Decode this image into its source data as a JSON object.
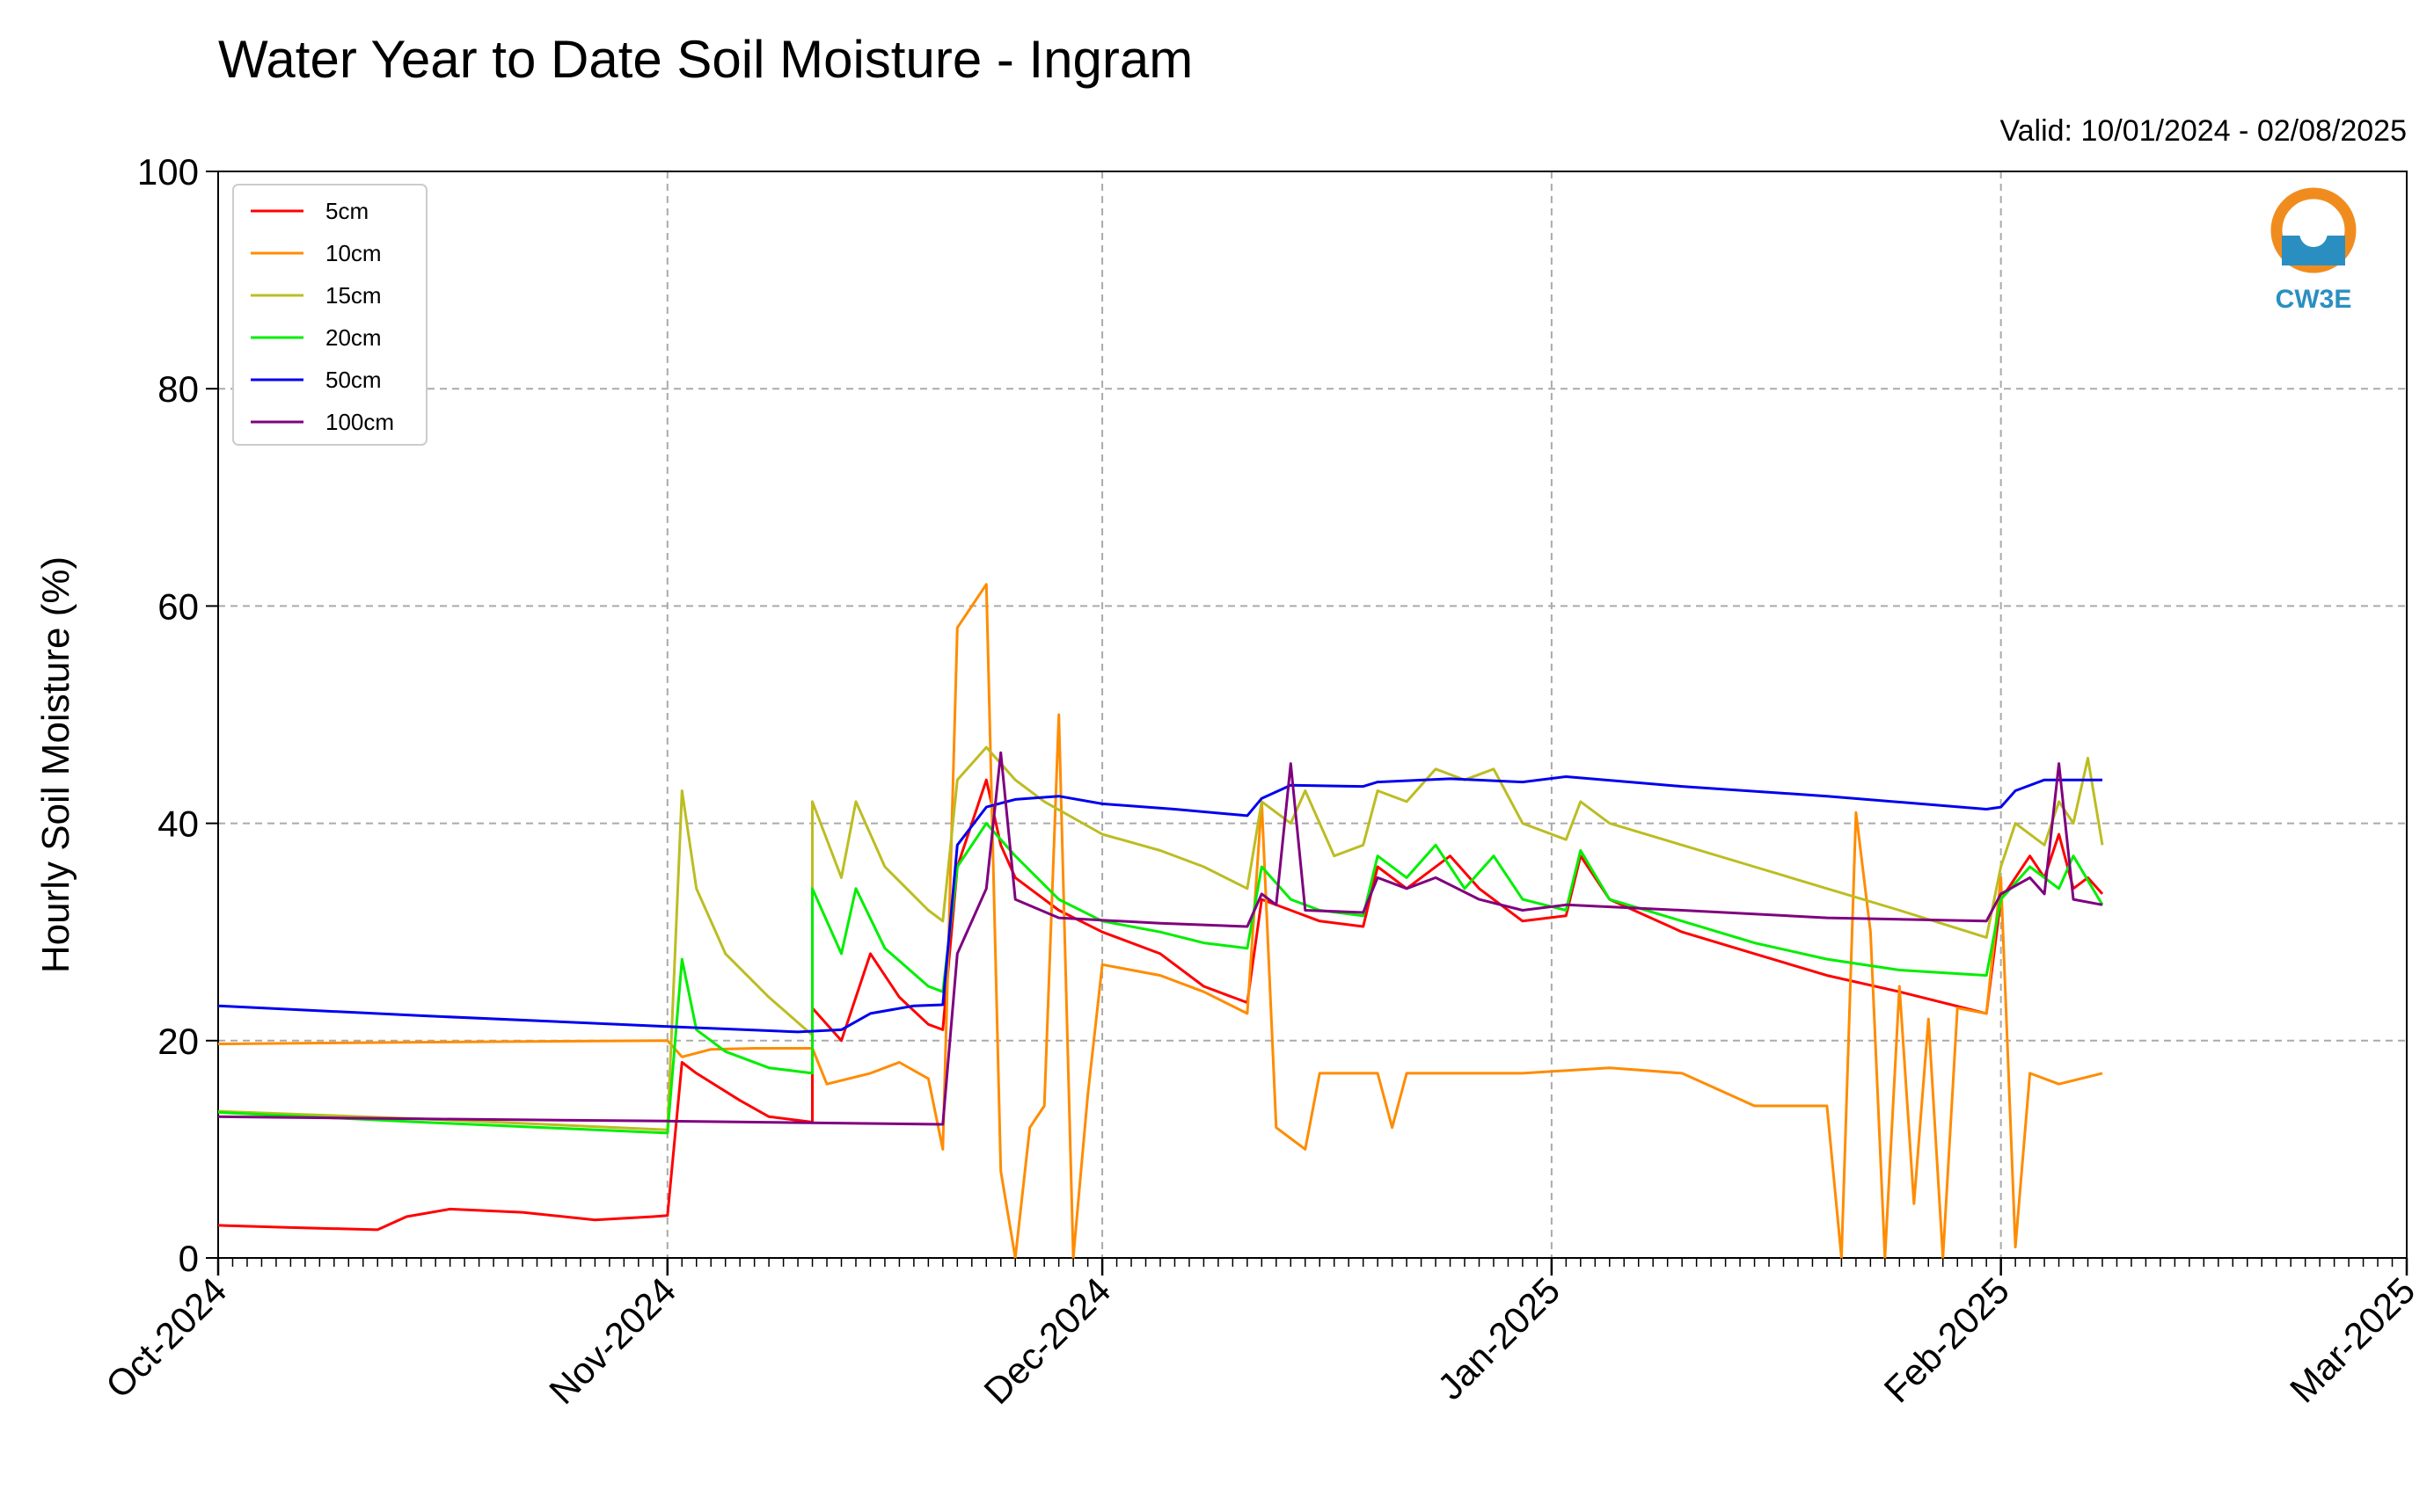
{
  "chart_data": {
    "type": "line",
    "title": "Water Year to Date Soil Moisture - Ingram",
    "subtitle": "Valid: 10/01/2024 - 02/08/2025",
    "xlabel": "",
    "ylabel": "Hourly Soil Moisture (%)",
    "xlim": [
      "2024-10-01",
      "2025-03-01"
    ],
    "ylim": [
      0,
      100
    ],
    "yticks": [
      0,
      20,
      40,
      60,
      80,
      100
    ],
    "xticks": [
      "Oct-2024",
      "Nov-2024",
      "Dec-2024",
      "Jan-2025",
      "Feb-2025",
      "Mar-2025"
    ],
    "xtick_dates": [
      "2024-10-01",
      "2024-11-01",
      "2024-12-01",
      "2025-01-01",
      "2025-02-01",
      "2025-03-01"
    ],
    "grid": true,
    "legend_position": "upper-left",
    "series": [
      {
        "name": "5cm",
        "color": "#ff0000",
        "points": [
          [
            "2024-10-01",
            3.0
          ],
          [
            "2024-10-06",
            2.8
          ],
          [
            "2024-10-12",
            2.6
          ],
          [
            "2024-10-14",
            3.8
          ],
          [
            "2024-10-17",
            4.5
          ],
          [
            "2024-10-22",
            4.2
          ],
          [
            "2024-10-27",
            3.5
          ],
          [
            "2024-10-31",
            3.8
          ],
          [
            "2024-11-01",
            3.9
          ],
          [
            "2024-11-02",
            18.0
          ],
          [
            "2024-11-03",
            17.0
          ],
          [
            "2024-11-06",
            14.5
          ],
          [
            "2024-11-08",
            13.0
          ],
          [
            "2024-11-11",
            12.5
          ],
          [
            "2024-11-11",
            23.0
          ],
          [
            "2024-11-13",
            20.0
          ],
          [
            "2024-11-15",
            28.0
          ],
          [
            "2024-11-17",
            24.0
          ],
          [
            "2024-11-19",
            21.5
          ],
          [
            "2024-11-20",
            21.0
          ],
          [
            "2024-11-21",
            36.0
          ],
          [
            "2024-11-22",
            40.0
          ],
          [
            "2024-11-23",
            44.0
          ],
          [
            "2024-11-24",
            38.0
          ],
          [
            "2024-11-25",
            35.0
          ],
          [
            "2024-11-28",
            32.0
          ],
          [
            "2024-12-01",
            30.0
          ],
          [
            "2024-12-05",
            28.0
          ],
          [
            "2024-12-08",
            25.0
          ],
          [
            "2024-12-10",
            24.0
          ],
          [
            "2024-12-11",
            23.5
          ],
          [
            "2024-12-12",
            33.0
          ],
          [
            "2024-12-14",
            32.0
          ],
          [
            "2024-12-16",
            31.0
          ],
          [
            "2024-12-19",
            30.5
          ],
          [
            "2024-12-20",
            36.0
          ],
          [
            "2024-12-22",
            34.0
          ],
          [
            "2024-12-25",
            37.0
          ],
          [
            "2024-12-27",
            34.0
          ],
          [
            "2024-12-30",
            31.0
          ],
          [
            "2025-01-02",
            31.5
          ],
          [
            "2025-01-03",
            37.0
          ],
          [
            "2025-01-05",
            33.0
          ],
          [
            "2025-01-10",
            30.0
          ],
          [
            "2025-01-15",
            28.0
          ],
          [
            "2025-01-20",
            26.0
          ],
          [
            "2025-01-25",
            24.5
          ],
          [
            "2025-01-31",
            22.5
          ],
          [
            "2025-02-01",
            33.0
          ],
          [
            "2025-02-03",
            37.0
          ],
          [
            "2025-02-04",
            35.0
          ],
          [
            "2025-02-05",
            39.0
          ],
          [
            "2025-02-06",
            34.0
          ],
          [
            "2025-02-07",
            35.0
          ],
          [
            "2025-02-08",
            33.5
          ]
        ]
      },
      {
        "name": "10cm",
        "color": "#ff8c00",
        "points": [
          [
            "2024-10-01",
            19.7
          ],
          [
            "2024-10-10",
            19.8
          ],
          [
            "2024-10-20",
            19.9
          ],
          [
            "2024-11-01",
            20.0
          ],
          [
            "2024-11-02",
            18.5
          ],
          [
            "2024-11-04",
            19.2
          ],
          [
            "2024-11-07",
            19.3
          ],
          [
            "2024-11-11",
            19.3
          ],
          [
            "2024-11-12",
            16.0
          ],
          [
            "2024-11-15",
            17.0
          ],
          [
            "2024-11-17",
            18.0
          ],
          [
            "2024-11-19",
            16.5
          ],
          [
            "2024-11-20",
            10.0
          ],
          [
            "2024-11-21",
            58.0
          ],
          [
            "2024-11-22",
            60.0
          ],
          [
            "2024-11-23",
            62.0
          ],
          [
            "2024-11-24",
            8.0
          ],
          [
            "2024-11-25",
            0.0
          ],
          [
            "2024-11-26",
            12.0
          ],
          [
            "2024-11-27",
            14.0
          ],
          [
            "2024-11-28",
            50.0
          ],
          [
            "2024-11-29",
            0.0
          ],
          [
            "2024-11-30",
            15.0
          ],
          [
            "2024-12-01",
            27.0
          ],
          [
            "2024-12-05",
            26.0
          ],
          [
            "2024-12-08",
            24.5
          ],
          [
            "2024-12-11",
            22.5
          ],
          [
            "2024-12-12",
            42.0
          ],
          [
            "2024-12-13",
            12.0
          ],
          [
            "2024-12-15",
            10.0
          ],
          [
            "2024-12-16",
            17.0
          ],
          [
            "2024-12-20",
            17.0
          ],
          [
            "2024-12-21",
            12.0
          ],
          [
            "2024-12-22",
            17.0
          ],
          [
            "2024-12-30",
            17.0
          ],
          [
            "2025-01-05",
            17.5
          ],
          [
            "2025-01-10",
            17.0
          ],
          [
            "2025-01-15",
            14.0
          ],
          [
            "2025-01-20",
            14.0
          ],
          [
            "2025-01-21",
            0.0
          ],
          [
            "2025-01-22",
            41.0
          ],
          [
            "2025-01-23",
            30.0
          ],
          [
            "2025-01-24",
            0.0
          ],
          [
            "2025-01-25",
            25.0
          ],
          [
            "2025-01-26",
            5.0
          ],
          [
            "2025-01-27",
            22.0
          ],
          [
            "2025-01-28",
            0.0
          ],
          [
            "2025-01-29",
            23.0
          ],
          [
            "2025-01-31",
            22.5
          ],
          [
            "2025-02-01",
            35.0
          ],
          [
            "2025-02-02",
            1.0
          ],
          [
            "2025-02-03",
            17.0
          ],
          [
            "2025-02-05",
            16.0
          ],
          [
            "2025-02-08",
            17.0
          ]
        ]
      },
      {
        "name": "15cm",
        "color": "#bcbd22",
        "points": [
          [
            "2024-10-01",
            13.5
          ],
          [
            "2024-10-15",
            12.8
          ],
          [
            "2024-11-01",
            11.8
          ],
          [
            "2024-11-02",
            43.0
          ],
          [
            "2024-11-03",
            34.0
          ],
          [
            "2024-11-05",
            28.0
          ],
          [
            "2024-11-08",
            24.0
          ],
          [
            "2024-11-11",
            20.5
          ],
          [
            "2024-11-11",
            42.0
          ],
          [
            "2024-11-13",
            35.0
          ],
          [
            "2024-11-14",
            42.0
          ],
          [
            "2024-11-16",
            36.0
          ],
          [
            "2024-11-19",
            32.0
          ],
          [
            "2024-11-20",
            31.0
          ],
          [
            "2024-11-21",
            44.0
          ],
          [
            "2024-11-23",
            47.0
          ],
          [
            "2024-11-25",
            44.0
          ],
          [
            "2024-11-27",
            42.0
          ],
          [
            "2024-12-01",
            39.0
          ],
          [
            "2024-12-05",
            37.5
          ],
          [
            "2024-12-08",
            36.0
          ],
          [
            "2024-12-11",
            34.0
          ],
          [
            "2024-12-12",
            42.0
          ],
          [
            "2024-12-14",
            40.0
          ],
          [
            "2024-12-15",
            43.0
          ],
          [
            "2024-12-17",
            37.0
          ],
          [
            "2024-12-19",
            38.0
          ],
          [
            "2024-12-20",
            43.0
          ],
          [
            "2024-12-22",
            42.0
          ],
          [
            "2024-12-24",
            45.0
          ],
          [
            "2024-12-26",
            44.0
          ],
          [
            "2024-12-28",
            45.0
          ],
          [
            "2024-12-30",
            40.0
          ],
          [
            "2025-01-02",
            38.5
          ],
          [
            "2025-01-03",
            42.0
          ],
          [
            "2025-01-05",
            40.0
          ],
          [
            "2025-01-10",
            38.0
          ],
          [
            "2025-01-15",
            36.0
          ],
          [
            "2025-01-20",
            34.0
          ],
          [
            "2025-01-25",
            32.0
          ],
          [
            "2025-01-31",
            29.5
          ],
          [
            "2025-02-01",
            36.0
          ],
          [
            "2025-02-02",
            40.0
          ],
          [
            "2025-02-04",
            38.0
          ],
          [
            "2025-02-05",
            42.0
          ],
          [
            "2025-02-06",
            40.0
          ],
          [
            "2025-02-07",
            46.0
          ],
          [
            "2025-02-08",
            38.0
          ]
        ]
      },
      {
        "name": "20cm",
        "color": "#00ee00",
        "points": [
          [
            "2024-10-01",
            13.4
          ],
          [
            "2024-10-15",
            12.5
          ],
          [
            "2024-11-01",
            11.5
          ],
          [
            "2024-11-02",
            27.5
          ],
          [
            "2024-11-03",
            21.0
          ],
          [
            "2024-11-05",
            19.0
          ],
          [
            "2024-11-08",
            17.5
          ],
          [
            "2024-11-11",
            17.0
          ],
          [
            "2024-11-11",
            34.0
          ],
          [
            "2024-11-13",
            28.0
          ],
          [
            "2024-11-14",
            34.0
          ],
          [
            "2024-11-16",
            28.5
          ],
          [
            "2024-11-19",
            25.0
          ],
          [
            "2024-11-20",
            24.5
          ],
          [
            "2024-11-21",
            36.0
          ],
          [
            "2024-11-23",
            40.0
          ],
          [
            "2024-11-25",
            37.0
          ],
          [
            "2024-11-28",
            33.0
          ],
          [
            "2024-12-01",
            31.0
          ],
          [
            "2024-12-05",
            30.0
          ],
          [
            "2024-12-08",
            29.0
          ],
          [
            "2024-12-11",
            28.5
          ],
          [
            "2024-12-12",
            36.0
          ],
          [
            "2024-12-14",
            33.0
          ],
          [
            "2024-12-16",
            32.0
          ],
          [
            "2024-12-19",
            31.5
          ],
          [
            "2024-12-20",
            37.0
          ],
          [
            "2024-12-22",
            35.0
          ],
          [
            "2024-12-24",
            38.0
          ],
          [
            "2024-12-26",
            34.0
          ],
          [
            "2024-12-28",
            37.0
          ],
          [
            "2024-12-30",
            33.0
          ],
          [
            "2025-01-02",
            32.0
          ],
          [
            "2025-01-03",
            37.5
          ],
          [
            "2025-01-05",
            33.0
          ],
          [
            "2025-01-10",
            31.0
          ],
          [
            "2025-01-15",
            29.0
          ],
          [
            "2025-01-20",
            27.5
          ],
          [
            "2025-01-25",
            26.5
          ],
          [
            "2025-01-31",
            26.0
          ],
          [
            "2025-02-01",
            33.0
          ],
          [
            "2025-02-03",
            36.0
          ],
          [
            "2025-02-05",
            34.0
          ],
          [
            "2025-02-06",
            37.0
          ],
          [
            "2025-02-08",
            32.5
          ]
        ]
      },
      {
        "name": "50cm",
        "color": "#0000ee",
        "points": [
          [
            "2024-10-01",
            23.2
          ],
          [
            "2024-10-15",
            22.3
          ],
          [
            "2024-11-01",
            21.3
          ],
          [
            "2024-11-10",
            20.8
          ],
          [
            "2024-11-13",
            21.0
          ],
          [
            "2024-11-15",
            22.5
          ],
          [
            "2024-11-18",
            23.2
          ],
          [
            "2024-11-20",
            23.3
          ],
          [
            "2024-11-21",
            38.0
          ],
          [
            "2024-11-23",
            41.5
          ],
          [
            "2024-11-25",
            42.2
          ],
          [
            "2024-11-28",
            42.5
          ],
          [
            "2024-12-01",
            41.8
          ],
          [
            "2024-12-06",
            41.3
          ],
          [
            "2024-12-11",
            40.7
          ],
          [
            "2024-12-12",
            42.3
          ],
          [
            "2024-12-14",
            43.5
          ],
          [
            "2024-12-19",
            43.4
          ],
          [
            "2024-12-20",
            43.8
          ],
          [
            "2024-12-25",
            44.1
          ],
          [
            "2024-12-30",
            43.8
          ],
          [
            "2025-01-02",
            44.3
          ],
          [
            "2025-01-10",
            43.4
          ],
          [
            "2025-01-20",
            42.5
          ],
          [
            "2025-01-31",
            41.3
          ],
          [
            "2025-02-01",
            41.5
          ],
          [
            "2025-02-02",
            43.0
          ],
          [
            "2025-02-04",
            44.0
          ],
          [
            "2025-02-08",
            44.0
          ]
        ]
      },
      {
        "name": "100cm",
        "color": "#7f007f",
        "points": [
          [
            "2024-10-01",
            13.0
          ],
          [
            "2024-10-15",
            12.8
          ],
          [
            "2024-11-01",
            12.6
          ],
          [
            "2024-11-20",
            12.3
          ],
          [
            "2024-11-21",
            28.0
          ],
          [
            "2024-11-23",
            34.0
          ],
          [
            "2024-11-24",
            46.5
          ],
          [
            "2024-11-25",
            33.0
          ],
          [
            "2024-11-28",
            31.3
          ],
          [
            "2024-12-05",
            30.8
          ],
          [
            "2024-12-11",
            30.5
          ],
          [
            "2024-12-12",
            33.5
          ],
          [
            "2024-12-13",
            32.5
          ],
          [
            "2024-12-14",
            45.5
          ],
          [
            "2024-12-15",
            32.0
          ],
          [
            "2024-12-19",
            31.8
          ],
          [
            "2024-12-20",
            35.0
          ],
          [
            "2024-12-22",
            34.0
          ],
          [
            "2024-12-24",
            35.0
          ],
          [
            "2024-12-27",
            33.0
          ],
          [
            "2024-12-30",
            32.0
          ],
          [
            "2025-01-02",
            32.5
          ],
          [
            "2025-01-10",
            32.0
          ],
          [
            "2025-01-20",
            31.3
          ],
          [
            "2025-01-31",
            31.0
          ],
          [
            "2025-02-01",
            33.5
          ],
          [
            "2025-02-03",
            35.0
          ],
          [
            "2025-02-04",
            33.5
          ],
          [
            "2025-02-05",
            45.5
          ],
          [
            "2025-02-06",
            33.0
          ],
          [
            "2025-02-08",
            32.5
          ]
        ]
      }
    ]
  },
  "logo": {
    "text": "CW3E",
    "color_orange": "#f08c1e",
    "color_blue": "#2a8fc0"
  }
}
